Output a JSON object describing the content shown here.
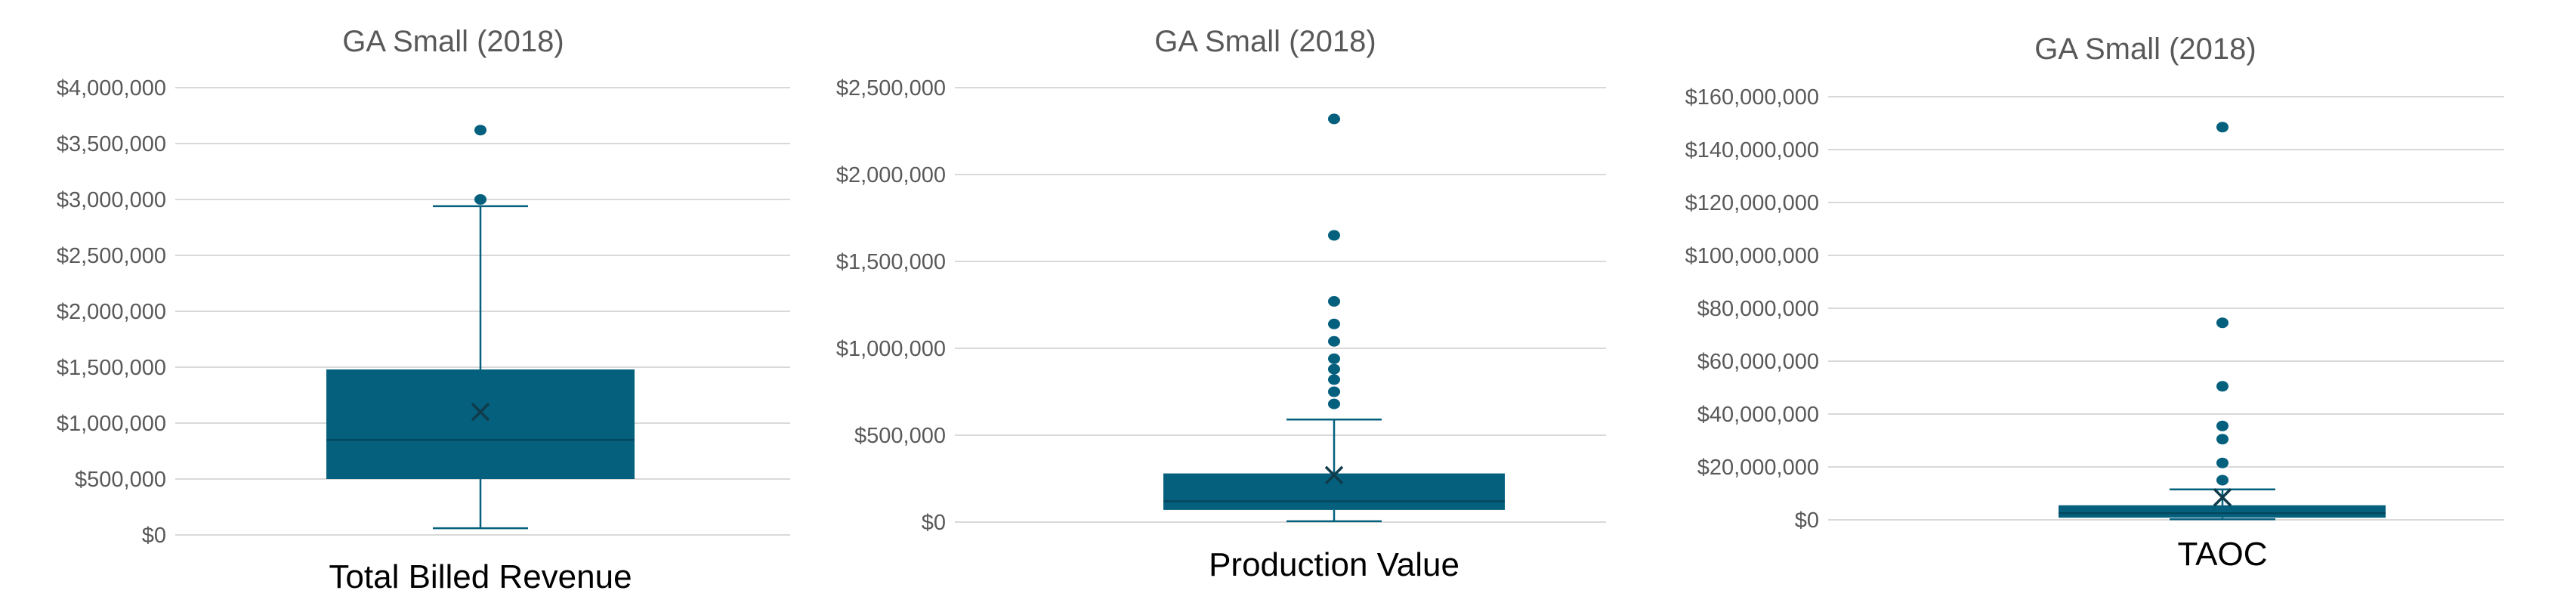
{
  "colors": {
    "series": "#05607e",
    "grid": "#d9d9d9",
    "title": "#595959",
    "tick": "#595959",
    "category": "#000000"
  },
  "chart_data": [
    {
      "type": "box",
      "title": "GA Small (2018)",
      "category": "Total Billed Revenue",
      "y_ticks": [
        "$0",
        "$500,000",
        "$1,000,000",
        "$1,500,000",
        "$2,000,000",
        "$2,500,000",
        "$3,000,000",
        "$3,500,000",
        "$4,000,000"
      ],
      "ylim": [
        0,
        4000000
      ],
      "tick_step": 500000,
      "stats": {
        "min": 60000,
        "q1": 500000,
        "median": 850000,
        "mean": 1100000,
        "q3": 1480000,
        "max": 2940000
      },
      "outliers": [
        3000000,
        3620000
      ]
    },
    {
      "type": "box",
      "title": "GA Small (2018)",
      "category": "Production Value",
      "y_ticks": [
        "$0",
        "$500,000",
        "$1,000,000",
        "$1,500,000",
        "$2,000,000",
        "$2,500,000"
      ],
      "ylim": [
        0,
        2500000
      ],
      "tick_step": 500000,
      "stats": {
        "min": 5000,
        "q1": 70000,
        "median": 120000,
        "mean": 270000,
        "q3": 280000,
        "max": 590000
      },
      "outliers": [
        680000,
        750000,
        820000,
        880000,
        940000,
        1040000,
        1140000,
        1270000,
        1650000,
        2320000
      ]
    },
    {
      "type": "box",
      "title": "GA Small (2018)",
      "category": "TAOC",
      "y_ticks": [
        "$0",
        "$20,000,000",
        "$40,000,000",
        "$60,000,000",
        "$80,000,000",
        "$100,000,000",
        "$120,000,000",
        "$140,000,000",
        "$160,000,000"
      ],
      "ylim": [
        0,
        160000000
      ],
      "tick_step": 20000000,
      "stats": {
        "min": 200000,
        "q1": 800000,
        "median": 2500000,
        "mean": 8500000,
        "q3": 5500000,
        "max": 11500000
      },
      "outliers": [
        15000000,
        21500000,
        30500000,
        35500000,
        50500000,
        74500000,
        148500000
      ]
    }
  ]
}
